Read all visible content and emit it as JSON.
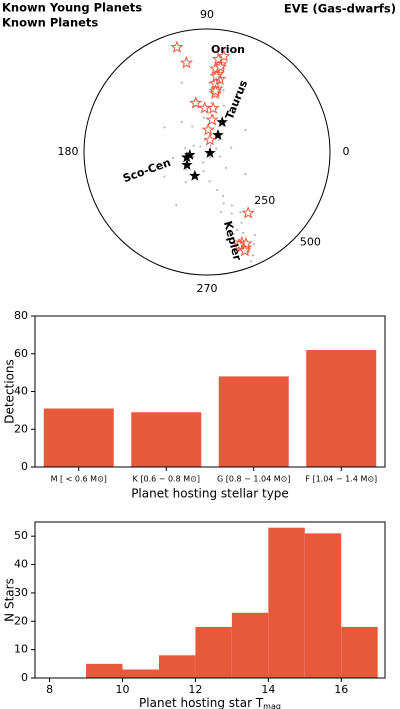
{
  "chart_data": [
    {
      "type": "polar-scatter",
      "rlim": [
        0,
        500
      ],
      "rticks": [
        250,
        500
      ],
      "thetaticks": [
        0,
        90,
        180,
        270
      ],
      "annotations": [
        "Orion",
        "Taurus",
        "Sco-Cen",
        "Kepler"
      ],
      "series": [
        {
          "name": "Known Planets",
          "color": "#888888",
          "marker": "dot",
          "theta": [
            20,
            60,
            100,
            140,
            200,
            250,
            300,
            340,
            170,
            220,
            260,
            10,
            120,
            80,
            45,
            190,
            235,
            275,
            320,
            155,
            285,
            290,
            288,
            295,
            292,
            289,
            296,
            291,
            294,
            290,
            293,
            297,
            291,
            294,
            288,
            299,
            283,
            300,
            287,
            292,
            78,
            85,
            80,
            90,
            75,
            95,
            70,
            88,
            83,
            100,
            150,
            210,
            30,
            330,
            110,
            60,
            240,
            130
          ],
          "r": [
            40,
            30,
            50,
            35,
            60,
            45,
            25,
            55,
            90,
            110,
            80,
            100,
            120,
            150,
            70,
            140,
            150,
            120,
            100,
            60,
            160,
            190,
            220,
            240,
            270,
            300,
            320,
            340,
            360,
            380,
            400,
            420,
            440,
            460,
            350,
            280,
            250,
            390,
            410,
            480,
            180,
            200,
            230,
            160,
            260,
            140,
            200,
            280,
            320,
            210,
            200,
            200,
            180,
            180,
            300,
            250,
            250,
            160
          ]
        },
        {
          "name": "Known Young Planets",
          "color": "#000000",
          "marker": "star",
          "theta": [
            63,
            57,
            190,
            213,
            243,
            342,
            195
          ],
          "r": [
            136,
            82,
            71,
            97,
            109,
            13,
            85
          ]
        },
        {
          "name": "EVE (Gas-dwarfs)",
          "color": "#e8593c",
          "marker": "open-star",
          "theta": [
            106,
            103,
            103,
            93,
            82,
            81,
            87,
            76,
            304,
            82,
            81,
            83,
            80,
            82,
            84,
            81,
            83,
            80,
            82,
            83,
            81,
            291,
            290,
            292,
            293,
            289,
            291
          ],
          "r": [
            443,
            372,
            204,
            179,
            179,
            132,
            90,
            50,
            299,
            240,
            260,
            280,
            300,
            320,
            340,
            360,
            380,
            395,
            250,
            310,
            350,
            395,
            410,
            420,
            405,
            400,
            430
          ]
        }
      ]
    },
    {
      "type": "bar",
      "categories": [
        "M [ < 0.6 M⊙]",
        "K [0.6 − 0.8 M⊙]",
        "G [0.8 − 1.04 M⊙]",
        "F [1.04 − 1.4 M⊙]"
      ],
      "values": [
        31,
        29,
        48,
        62
      ],
      "color": "#e8593c",
      "ylim": [
        0,
        80
      ],
      "yticks": [
        0,
        20,
        40,
        60,
        80
      ],
      "ylabel": "Detections",
      "xlabel": "Planet hosting stellar type"
    },
    {
      "type": "histogram",
      "bins": [
        9,
        10,
        11,
        12,
        13,
        14,
        15,
        16,
        17
      ],
      "values": [
        5,
        3,
        8,
        18,
        23,
        53,
        51,
        18
      ],
      "color": "#e8593c",
      "xlim": [
        7.6,
        17.2
      ],
      "xticks": [
        8,
        10,
        12,
        14,
        16
      ],
      "ylim": [
        0,
        55
      ],
      "yticks": [
        0,
        10,
        20,
        30,
        40,
        50
      ],
      "ylabel": "N Stars",
      "xlabel": "Planet hosting star T",
      "xlabel_subscript": "mag"
    }
  ]
}
